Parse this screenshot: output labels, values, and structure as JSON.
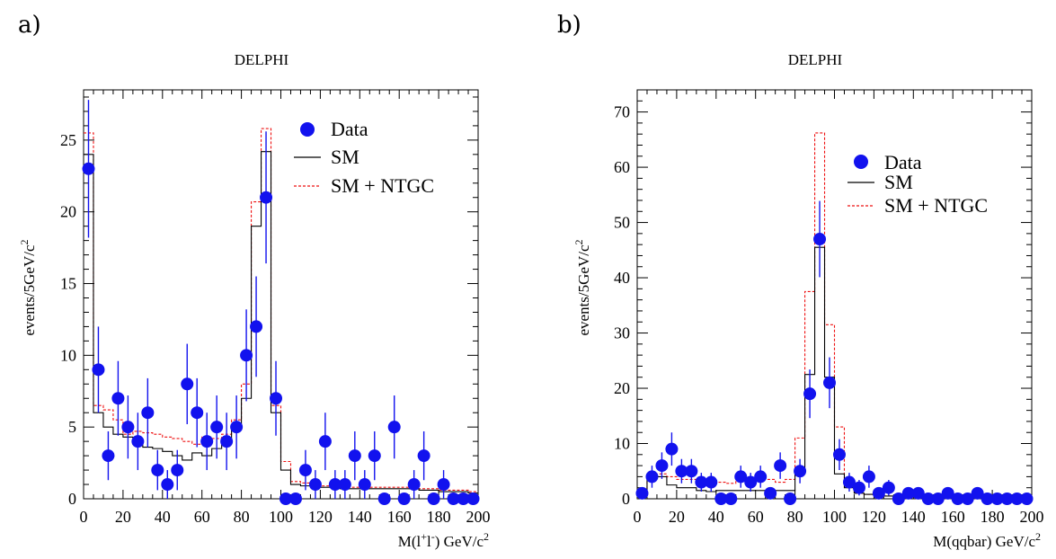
{
  "colors": {
    "data": "#1212ee",
    "sm": "#000000",
    "ntgc": "#ee1111"
  },
  "chart_data": [
    {
      "type": "scatter",
      "panel": "a)",
      "title": "DELPHI",
      "xlabel": {
        "main": "M(l",
        "sup1": "+",
        "mid": "l",
        "sup2": "-",
        "tail": ") GeV/c",
        "sup3": "2"
      },
      "ylabel": {
        "main": "events/5GeV/c",
        "sup": "2"
      },
      "xlim": [
        0,
        200
      ],
      "ylim": [
        0,
        28.5
      ],
      "xticks": [
        0,
        20,
        40,
        60,
        80,
        100,
        120,
        140,
        160,
        180,
        200
      ],
      "yticks": [
        0,
        5,
        10,
        15,
        20,
        25
      ],
      "legend": {
        "placement": "top-right",
        "data": "Data",
        "sm": "SM",
        "ntgc": "SM + NTGC"
      },
      "bin_edges": [
        0,
        5,
        10,
        15,
        20,
        25,
        30,
        35,
        40,
        45,
        50,
        55,
        60,
        65,
        70,
        75,
        80,
        85,
        90,
        95,
        100,
        105,
        110,
        115,
        120,
        125,
        130,
        135,
        140,
        145,
        150,
        155,
        160,
        165,
        170,
        175,
        180,
        185,
        190,
        195,
        200
      ],
      "series": [
        {
          "name": "Data",
          "x": [
            2.5,
            7.5,
            12.5,
            17.5,
            22.5,
            27.5,
            32.5,
            37.5,
            42.5,
            47.5,
            52.5,
            57.5,
            62.5,
            67.5,
            72.5,
            77.5,
            82.5,
            87.5,
            92.5,
            97.5,
            102.5,
            107.5,
            112.5,
            117.5,
            122.5,
            127.5,
            132.5,
            137.5,
            142.5,
            147.5,
            152.5,
            157.5,
            162.5,
            167.5,
            172.5,
            177.5,
            182.5,
            187.5,
            192.5,
            197.5
          ],
          "y": [
            23,
            9,
            3,
            7,
            5,
            4,
            6,
            2,
            1,
            2,
            8,
            6,
            4,
            5,
            4,
            5,
            10,
            12,
            21,
            7,
            0,
            0,
            2,
            1,
            4,
            1,
            1,
            3,
            1,
            3,
            0,
            5,
            0,
            1,
            3,
            0,
            1,
            0,
            0,
            0
          ],
          "err": [
            4.8,
            3.0,
            1.7,
            2.6,
            2.2,
            2.0,
            2.4,
            1.4,
            1.0,
            1.4,
            2.8,
            2.4,
            2.0,
            2.2,
            2.0,
            2.2,
            3.2,
            3.5,
            4.6,
            2.6,
            0,
            0,
            1.4,
            1.0,
            2.0,
            1.0,
            1.0,
            1.7,
            1.0,
            1.7,
            0,
            2.2,
            0,
            1.0,
            1.7,
            0,
            1.0,
            0,
            0,
            0
          ]
        },
        {
          "name": "SM",
          "values": [
            24,
            6,
            5,
            4.5,
            4.3,
            3.8,
            3.6,
            3.5,
            3.3,
            3.0,
            2.7,
            3.2,
            3.0,
            3.5,
            4.0,
            5.0,
            7.0,
            19,
            24.2,
            6,
            2.0,
            1.0,
            0.9,
            0.9,
            0.8,
            0.8,
            0.7,
            0.7,
            0.7,
            0.7,
            0.7,
            0.7,
            0.7,
            0.7,
            0.6,
            0.6,
            0.5,
            0.5,
            0.5,
            0.4
          ]
        },
        {
          "name": "SM + NTGC",
          "values": [
            25.5,
            6.5,
            6.2,
            5.5,
            4.5,
            4.7,
            4.6,
            4.5,
            4.3,
            4.2,
            4.0,
            3.8,
            4.3,
            4.2,
            4.5,
            5.5,
            8.0,
            20.7,
            25.8,
            6.5,
            2.6,
            1.2,
            1.1,
            1.0,
            0.9,
            0.9,
            0.8,
            0.8,
            0.8,
            0.8,
            0.8,
            0.8,
            0.8,
            0.7,
            0.7,
            0.7,
            0.6,
            0.6,
            0.6,
            0.5
          ]
        }
      ]
    },
    {
      "type": "scatter",
      "panel": "b)",
      "title": "DELPHI",
      "xlabel": {
        "main": "M(qqbar) GeV/c",
        "sup": "2"
      },
      "ylabel": {
        "main": "events/5GeV/c",
        "sup": "2"
      },
      "xlim": [
        0,
        200
      ],
      "ylim": [
        0,
        74
      ],
      "xticks": [
        0,
        20,
        40,
        60,
        80,
        100,
        120,
        140,
        160,
        180,
        200
      ],
      "yticks": [
        0,
        10,
        20,
        30,
        40,
        50,
        60,
        70
      ],
      "legend": {
        "placement": "right",
        "data": "Data",
        "sm": "SM",
        "ntgc": "SM + NTGC"
      },
      "bin_edges": [
        0,
        5,
        10,
        15,
        20,
        25,
        30,
        35,
        40,
        45,
        50,
        55,
        60,
        65,
        70,
        75,
        80,
        85,
        90,
        95,
        100,
        105,
        110,
        115,
        120,
        125,
        130,
        135,
        140,
        145,
        150,
        155,
        160,
        165,
        170,
        175,
        180,
        185,
        190,
        195,
        200
      ],
      "series": [
        {
          "name": "Data",
          "x": [
            2.5,
            7.5,
            12.5,
            17.5,
            22.5,
            27.5,
            32.5,
            37.5,
            42.5,
            47.5,
            52.5,
            57.5,
            62.5,
            67.5,
            72.5,
            77.5,
            82.5,
            87.5,
            92.5,
            97.5,
            102.5,
            107.5,
            112.5,
            117.5,
            122.5,
            127.5,
            132.5,
            137.5,
            142.5,
            147.5,
            152.5,
            157.5,
            162.5,
            167.5,
            172.5,
            177.5,
            182.5,
            187.5,
            192.5,
            197.5
          ],
          "y": [
            1,
            4,
            6,
            9,
            5,
            5,
            3,
            3,
            0,
            0,
            4,
            3,
            4,
            1,
            6,
            0,
            5,
            19,
            47,
            21,
            8,
            3,
            2,
            4,
            1,
            2,
            0,
            1,
            1,
            0,
            0,
            1,
            0,
            0,
            1,
            0,
            0,
            0,
            0,
            0
          ],
          "err": [
            1.0,
            2.0,
            2.4,
            3.0,
            2.2,
            2.2,
            1.7,
            1.7,
            0,
            0,
            2.0,
            1.7,
            2.0,
            1.0,
            2.4,
            0,
            2.2,
            4.4,
            6.9,
            4.6,
            2.8,
            1.7,
            1.4,
            2.0,
            1.0,
            1.4,
            0,
            1.0,
            1.0,
            0,
            0,
            1.0,
            0,
            0,
            1.0,
            0,
            0,
            0,
            0,
            0
          ]
        },
        {
          "name": "SM",
          "values": [
            1.0,
            4.5,
            4.0,
            2.5,
            2.0,
            2.0,
            1.5,
            1.3,
            1.5,
            1.5,
            1.5,
            1.5,
            1.5,
            1.5,
            1.5,
            1.5,
            5.0,
            22.5,
            45.5,
            22,
            4.5,
            2.0,
            1.0,
            0.8,
            0.6,
            0.5,
            0.5,
            0.4,
            0.4,
            0.3,
            0.3,
            0.3,
            0.3,
            0.3,
            0.3,
            0.2,
            0.2,
            0.2,
            0.2,
            0.2
          ]
        },
        {
          "name": "SM + NTGC",
          "values": [
            1.2,
            3.5,
            4.5,
            4.0,
            3.5,
            3.5,
            3.0,
            3.0,
            3.0,
            2.8,
            3.3,
            3.5,
            3.5,
            3.5,
            3.0,
            3.5,
            11,
            37.5,
            66.2,
            31.5,
            13.0,
            3.0,
            1.0,
            0.8,
            0.6,
            0.5,
            0.5,
            0.4,
            0.4,
            0.3,
            0.3,
            0.3,
            0.3,
            0.3,
            0.3,
            0.2,
            0.2,
            0.2,
            0.2,
            0.2
          ]
        }
      ]
    }
  ]
}
